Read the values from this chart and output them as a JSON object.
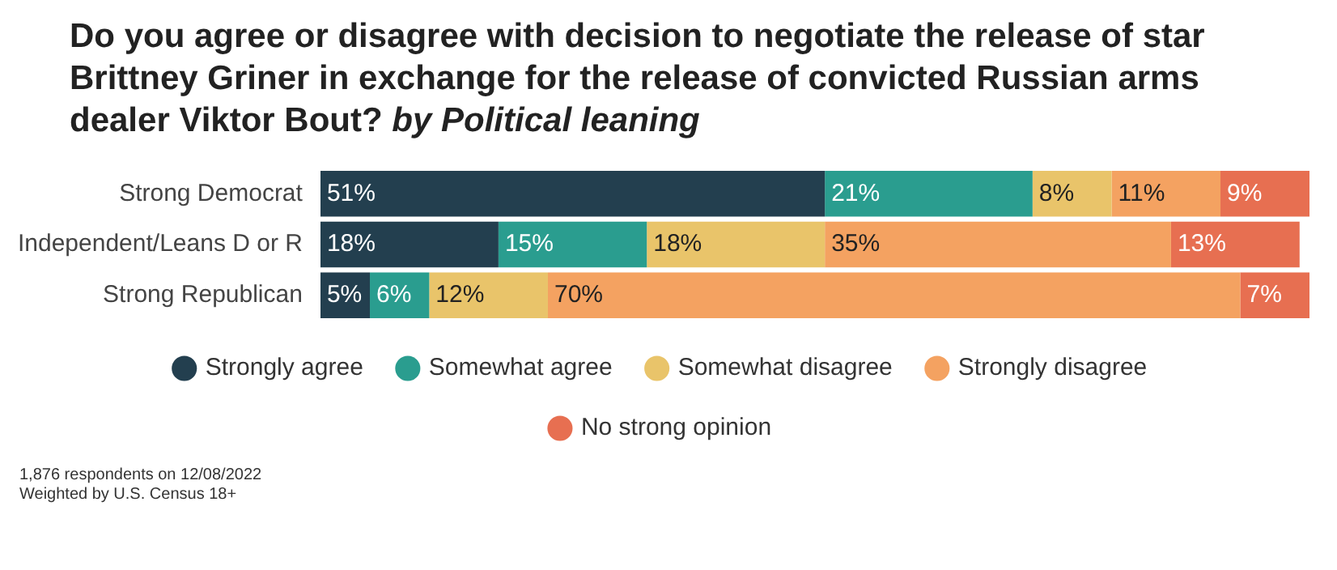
{
  "chart_data": {
    "type": "bar",
    "orientation": "horizontal",
    "stacked": true,
    "title": "Do you agree or disagree with decision to negotiate the release of star Brittney Griner in exchange for the release of convicted Russian arms dealer Viktor Bout?",
    "subtitle": "by Political leaning",
    "categories": [
      "Strong Democrat",
      "Independent/Leans D or R",
      "Strong Republican"
    ],
    "series": [
      {
        "name": "Strongly agree",
        "color": "#233f4f",
        "values": [
          51,
          18,
          5
        ],
        "value_labels": [
          "51%",
          "18%",
          "5%"
        ]
      },
      {
        "name": "Somewhat agree",
        "color": "#2a9d8f",
        "values": [
          21,
          15,
          6
        ],
        "value_labels": [
          "21%",
          "15%",
          "6%"
        ]
      },
      {
        "name": "Somewhat disagree",
        "color": "#e9c46a",
        "values": [
          8,
          18,
          12
        ],
        "value_labels": [
          "8%",
          "18%",
          "12%"
        ]
      },
      {
        "name": "Strongly disagree",
        "color": "#f4a261",
        "values": [
          11,
          35,
          70
        ],
        "value_labels": [
          "11%",
          "35%",
          "70%"
        ]
      },
      {
        "name": "No strong opinion",
        "color": "#e76f51",
        "values": [
          9,
          13,
          7
        ],
        "value_labels": [
          "9%",
          "13%",
          "7%"
        ]
      }
    ],
    "legend": "bottom",
    "tick_labels": "y",
    "annotations": [
      "1,876 respondents on 12/08/2022",
      "Weighted by U.S. Census 18+"
    ]
  }
}
